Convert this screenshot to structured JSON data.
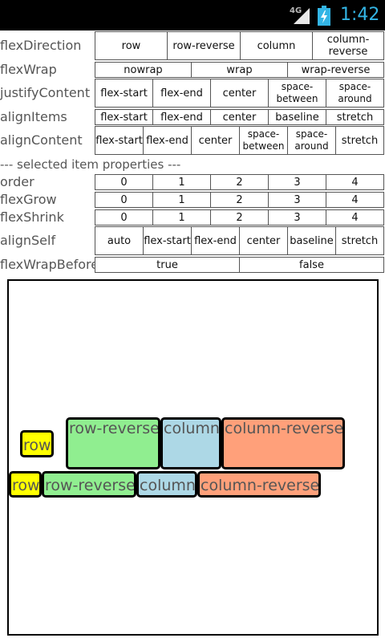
{
  "status_bar": {
    "network": "4G",
    "time": "1:42",
    "battery_icon": "battery-charging-icon",
    "signal_icon": "signal-icon",
    "accent_color": "#33b5e5"
  },
  "container_properties": {
    "flexDirection": {
      "label": "flexDirection",
      "options": [
        "row",
        "row-reverse",
        "column",
        "column-reverse"
      ]
    },
    "flexWrap": {
      "label": "flexWrap",
      "options": [
        "nowrap",
        "wrap",
        "wrap-reverse"
      ]
    },
    "justifyContent": {
      "label": "justifyContent",
      "options": [
        "flex-start",
        "flex-end",
        "center",
        "space-between",
        "space-around"
      ]
    },
    "alignItems": {
      "label": "alignItems",
      "options": [
        "flex-start",
        "flex-end",
        "center",
        "baseline",
        "stretch"
      ]
    },
    "alignContent": {
      "label": "alignContent",
      "options": [
        "flex-start",
        "flex-end",
        "center",
        "space-between",
        "space-around",
        "stretch"
      ]
    }
  },
  "section_header": "--- selected item properties ---",
  "item_properties": {
    "order": {
      "label": "order",
      "options": [
        "0",
        "1",
        "2",
        "3",
        "4"
      ]
    },
    "flexGrow": {
      "label": "flexGrow",
      "options": [
        "0",
        "1",
        "2",
        "3",
        "4"
      ]
    },
    "flexShrink": {
      "label": "flexShrink",
      "options": [
        "0",
        "1",
        "2",
        "3",
        "4"
      ]
    },
    "alignSelf": {
      "label": "alignSelf",
      "options": [
        "auto",
        "flex-start",
        "flex-end",
        "center",
        "baseline",
        "stretch"
      ]
    },
    "flexWrapBefore": {
      "label": "flexWrapBefore",
      "options": [
        "true",
        "false"
      ]
    }
  },
  "canvas_items": [
    {
      "label": "row",
      "color": "#ffff00"
    },
    {
      "label": "row-reverse",
      "color": "#90ee90"
    },
    {
      "label": "column",
      "color": "#add8e6"
    },
    {
      "label": "column-reverse",
      "color": "#ffa07a"
    },
    {
      "label": "row",
      "color": "#ffff00"
    },
    {
      "label": "row-reverse",
      "color": "#90ee90"
    },
    {
      "label": "column",
      "color": "#add8e6"
    },
    {
      "label": "column-reverse",
      "color": "#ffa07a"
    }
  ]
}
